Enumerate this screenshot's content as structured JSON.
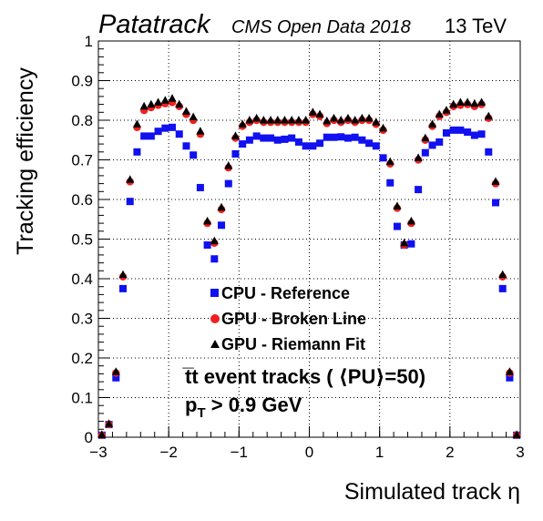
{
  "header": {
    "title": "Patatrack",
    "subtitle": "CMS Open Data 2018",
    "energy": "13 TeV"
  },
  "chart_data": {
    "type": "scatter",
    "xlabel": "Simulated track η",
    "ylabel": "Tracking efficiency",
    "xlim": [
      -3,
      3
    ],
    "ylim": [
      0,
      1
    ],
    "x_ticks": [
      "−3",
      "−2",
      "−1",
      "0",
      "1",
      "2",
      "3"
    ],
    "y_ticks": [
      "0",
      "0.1",
      "0.2",
      "0.3",
      "0.4",
      "0.5",
      "0.6",
      "0.7",
      "0.8",
      "0.9",
      "1"
    ],
    "grid": true,
    "legend_position": "center-left",
    "x": [
      -2.95,
      -2.85,
      -2.75,
      -2.65,
      -2.55,
      -2.45,
      -2.35,
      -2.25,
      -2.15,
      -2.05,
      -1.95,
      -1.85,
      -1.75,
      -1.65,
      -1.55,
      -1.45,
      -1.35,
      -1.25,
      -1.15,
      -1.05,
      -0.95,
      -0.85,
      -0.75,
      -0.65,
      -0.55,
      -0.45,
      -0.35,
      -0.25,
      -0.15,
      -0.05,
      0.05,
      0.15,
      0.25,
      0.35,
      0.45,
      0.55,
      0.65,
      0.75,
      0.85,
      0.95,
      1.05,
      1.15,
      1.25,
      1.35,
      1.45,
      1.55,
      1.65,
      1.75,
      1.85,
      1.95,
      2.05,
      2.15,
      2.25,
      2.35,
      2.45,
      2.55,
      2.65,
      2.75,
      2.85,
      2.95
    ],
    "series": [
      {
        "name": "CPU - Reference",
        "marker": "square",
        "color": "#1010f0",
        "values": [
          0.005,
          0.032,
          0.15,
          0.375,
          0.595,
          0.72,
          0.76,
          0.76,
          0.772,
          0.78,
          0.782,
          0.765,
          0.735,
          0.712,
          0.63,
          0.485,
          0.45,
          0.535,
          0.64,
          0.715,
          0.74,
          0.75,
          0.76,
          0.755,
          0.755,
          0.75,
          0.752,
          0.755,
          0.745,
          0.735,
          0.735,
          0.742,
          0.757,
          0.757,
          0.758,
          0.755,
          0.757,
          0.75,
          0.742,
          0.735,
          0.705,
          0.642,
          0.532,
          0.485,
          0.488,
          0.625,
          0.718,
          0.737,
          0.745,
          0.768,
          0.775,
          0.775,
          0.77,
          0.762,
          0.765,
          0.72,
          0.592,
          0.375,
          0.15,
          0.005
        ]
      },
      {
        "name": "GPU - Broken Line",
        "marker": "circle",
        "color": "#ee2020",
        "values": [
          0.005,
          0.032,
          0.162,
          0.405,
          0.645,
          0.782,
          0.825,
          0.832,
          0.838,
          0.842,
          0.845,
          0.835,
          0.815,
          0.8,
          0.765,
          0.54,
          0.49,
          0.575,
          0.68,
          0.755,
          0.785,
          0.795,
          0.8,
          0.795,
          0.795,
          0.795,
          0.795,
          0.795,
          0.795,
          0.795,
          0.815,
          0.81,
          0.792,
          0.8,
          0.795,
          0.8,
          0.795,
          0.8,
          0.8,
          0.79,
          0.775,
          0.69,
          0.578,
          0.485,
          0.54,
          0.7,
          0.75,
          0.785,
          0.81,
          0.82,
          0.835,
          0.838,
          0.84,
          0.835,
          0.84,
          0.805,
          0.64,
          0.405,
          0.162,
          0.005
        ]
      },
      {
        "name": "GPU - Riemann Fit",
        "marker": "triangle",
        "color": "#000000",
        "values": [
          0.006,
          0.034,
          0.165,
          0.41,
          0.65,
          0.79,
          0.835,
          0.84,
          0.845,
          0.85,
          0.855,
          0.84,
          0.822,
          0.808,
          0.772,
          0.545,
          0.495,
          0.58,
          0.685,
          0.76,
          0.79,
          0.8,
          0.805,
          0.8,
          0.8,
          0.8,
          0.8,
          0.8,
          0.8,
          0.8,
          0.82,
          0.815,
          0.798,
          0.805,
          0.8,
          0.805,
          0.8,
          0.805,
          0.805,
          0.795,
          0.78,
          0.695,
          0.583,
          0.49,
          0.545,
          0.705,
          0.755,
          0.79,
          0.815,
          0.825,
          0.84,
          0.845,
          0.845,
          0.842,
          0.845,
          0.81,
          0.645,
          0.41,
          0.165,
          0.006
        ]
      }
    ],
    "annotations": {
      "sample": "t̅t event tracks ( ⟨PU⟩=50)",
      "cut_pt": "p",
      "cut_pt_sub": "T",
      "cut_rest": " > 0.9 GeV"
    }
  }
}
